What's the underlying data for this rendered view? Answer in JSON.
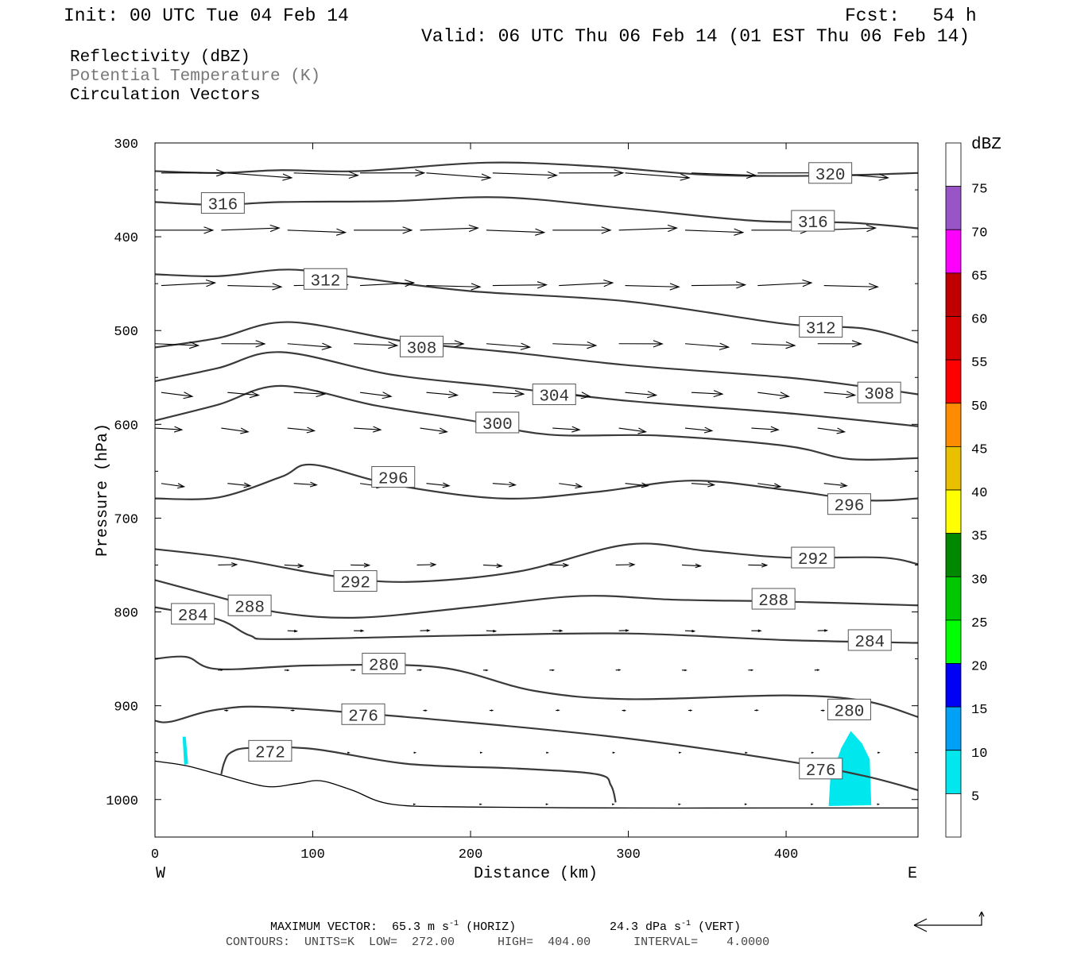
{
  "header": {
    "init": "Init: 00 UTC Tue 04 Feb 14",
    "fcst": "Fcst:   54 h",
    "valid": "Valid: 06 UTC Thu 06 Feb 14 (01 EST Thu 06 Feb 14)"
  },
  "legend": {
    "line1": "Reflectivity (dBZ)",
    "line2": "Potential Temperature (K)",
    "line3": "Circulation Vectors",
    "line2_color": "#777777"
  },
  "footer": {
    "max_vector_prefix": "MAXIMUM VECTOR:  65.3 m s",
    "horiz_exp": "-1",
    "horiz_suffix": " (HORIZ)",
    "vert_prefix": "24.3 dPa s",
    "vert_exp": "-1",
    "vert_suffix": " (VERT)",
    "contours": "CONTOURS:  UNITS=K  LOW=  272.00      HIGH=  404.00      INTERVAL=    4.0000"
  },
  "chart_data": {
    "type": "cross-section",
    "xlabel": "Distance (km)",
    "ylabel": "Pressure (hPa)",
    "xlim": [
      0,
      483.6
    ],
    "ylim": [
      300,
      1040
    ],
    "x_ticks": [
      "0",
      "100",
      "200",
      "300",
      "400"
    ],
    "y_ticks": [
      "300",
      "400",
      "500",
      "600",
      "700",
      "800",
      "900",
      "1000"
    ],
    "west_label": "W",
    "east_label": "E",
    "colorbar": {
      "title": "dBZ",
      "labels": [
        "5",
        "10",
        "15",
        "20",
        "25",
        "30",
        "35",
        "40",
        "45",
        "50",
        "55",
        "60",
        "65",
        "70",
        "75"
      ],
      "colors": [
        "#ffffff",
        "#00e8ee",
        "#00a0f6",
        "#0000f6",
        "#00ff00",
        "#00c800",
        "#008800",
        "#ffff00",
        "#e8c000",
        "#ff8c00",
        "#ff0000",
        "#d60000",
        "#c00000",
        "#ff00ff",
        "#9955c8",
        "#ffffff"
      ]
    },
    "reflectivity_regions": [
      {
        "dbz": 5,
        "color": "#00e8ee",
        "points": [
          [
            17.5,
            933
          ],
          [
            19.5,
            933
          ],
          [
            21,
            962
          ],
          [
            18.5,
            963
          ]
        ]
      },
      {
        "dbz": 5,
        "color": "#00e8ee",
        "points": [
          [
            427,
            1007
          ],
          [
            428,
            978
          ],
          [
            435,
            945
          ],
          [
            441,
            927
          ],
          [
            448,
            940
          ],
          [
            453,
            957
          ],
          [
            454,
            1006
          ]
        ]
      }
    ],
    "theta_contours": [
      {
        "value": 320,
        "points": [
          [
            0,
            330
          ],
          [
            40,
            332
          ],
          [
            80,
            329
          ],
          [
            130,
            330
          ],
          [
            210,
            321
          ],
          [
            280,
            325
          ],
          [
            350,
            334
          ],
          [
            420,
            335
          ],
          [
            483.6,
            332
          ]
        ],
        "labels": [
          [
            428,
            332
          ]
        ]
      },
      {
        "value": 316,
        "points": [
          [
            0,
            363
          ],
          [
            40,
            366
          ],
          [
            80,
            363
          ],
          [
            150,
            362
          ],
          [
            220,
            358
          ],
          [
            300,
            370
          ],
          [
            380,
            383
          ],
          [
            440,
            385
          ],
          [
            483.6,
            391
          ]
        ],
        "labels": [
          [
            43,
            364
          ],
          [
            417,
            383
          ]
        ]
      },
      {
        "value": 312,
        "points": [
          [
            0,
            440
          ],
          [
            40,
            442
          ],
          [
            85,
            435
          ],
          [
            130,
            444
          ],
          [
            200,
            458
          ],
          [
            300,
            469
          ],
          [
            400,
            493
          ],
          [
            450,
            498
          ],
          [
            483.6,
            513
          ]
        ],
        "labels": [
          [
            108,
            445
          ],
          [
            422,
            496
          ]
        ]
      },
      {
        "value": 308,
        "points": [
          [
            0,
            518
          ],
          [
            40,
            508
          ],
          [
            85,
            491
          ],
          [
            160,
            512
          ],
          [
            230,
            524
          ],
          [
            300,
            537
          ],
          [
            400,
            550
          ],
          [
            450,
            560
          ],
          [
            483.6,
            568
          ]
        ],
        "labels": [
          [
            169,
            517
          ],
          [
            459,
            566
          ]
        ]
      },
      {
        "value": 304,
        "points": [
          [
            0,
            554
          ],
          [
            40,
            540
          ],
          [
            80,
            523
          ],
          [
            150,
            547
          ],
          [
            220,
            560
          ],
          [
            300,
            575
          ],
          [
            400,
            588
          ],
          [
            483.6,
            602
          ]
        ],
        "labels": [
          [
            253,
            568
          ]
        ]
      },
      {
        "value": 300,
        "points": [
          [
            0,
            596
          ],
          [
            40,
            579
          ],
          [
            80,
            559
          ],
          [
            140,
            580
          ],
          [
            200,
            596
          ],
          [
            250,
            611
          ],
          [
            320,
            612
          ],
          [
            400,
            623
          ],
          [
            440,
            637
          ],
          [
            483.6,
            636
          ]
        ],
        "labels": [
          [
            217,
            598
          ]
        ]
      },
      {
        "value": 296,
        "points": [
          [
            0,
            679
          ],
          [
            40,
            678
          ],
          [
            80,
            656
          ],
          [
            100,
            643
          ],
          [
            150,
            664
          ],
          [
            220,
            679
          ],
          [
            280,
            672
          ],
          [
            340,
            660
          ],
          [
            400,
            670
          ],
          [
            450,
            681
          ],
          [
            483.6,
            679
          ]
        ],
        "labels": [
          [
            151,
            656
          ],
          [
            440,
            685
          ]
        ]
      },
      {
        "value": 292,
        "points": [
          [
            0,
            733
          ],
          [
            50,
            743
          ],
          [
            110,
            761
          ],
          [
            160,
            768
          ],
          [
            230,
            757
          ],
          [
            300,
            728
          ],
          [
            350,
            735
          ],
          [
            400,
            742
          ],
          [
            460,
            742
          ],
          [
            483.6,
            749
          ]
        ],
        "labels": [
          [
            127,
            767
          ],
          [
            417,
            742
          ]
        ]
      },
      {
        "value": 288,
        "points": [
          [
            0,
            766
          ],
          [
            40,
            784
          ],
          [
            80,
            801
          ],
          [
            130,
            806
          ],
          [
            200,
            795
          ],
          [
            270,
            783
          ],
          [
            330,
            787
          ],
          [
            400,
            789
          ],
          [
            483.6,
            793
          ]
        ],
        "labels": [
          [
            60,
            793
          ],
          [
            392,
            786
          ]
        ]
      },
      {
        "value": 284,
        "points": [
          [
            0,
            795
          ],
          [
            40,
            808
          ],
          [
            60,
            825
          ],
          [
            80,
            829
          ],
          [
            200,
            825
          ],
          [
            300,
            823
          ],
          [
            400,
            830
          ],
          [
            483.6,
            833
          ]
        ],
        "labels": [
          [
            24,
            802
          ],
          [
            453,
            830
          ]
        ]
      },
      {
        "value": 280,
        "points": [
          [
            0,
            850
          ],
          [
            20,
            848
          ],
          [
            40,
            861
          ],
          [
            100,
            857
          ],
          [
            180,
            859
          ],
          [
            240,
            884
          ],
          [
            300,
            893
          ],
          [
            400,
            889
          ],
          [
            450,
            895
          ],
          [
            483.6,
            912
          ]
        ],
        "labels": [
          [
            145,
            855
          ],
          [
            440,
            904
          ]
        ]
      },
      {
        "value": 276,
        "points": [
          [
            0,
            916
          ],
          [
            10,
            917
          ],
          [
            40,
            904
          ],
          [
            80,
            902
          ],
          [
            200,
            918
          ],
          [
            300,
            935
          ],
          [
            400,
            959
          ],
          [
            450,
            975
          ],
          [
            483.6,
            990
          ]
        ],
        "labels": [
          [
            132,
            909
          ],
          [
            422,
            967
          ]
        ]
      },
      {
        "value": 272,
        "points": [
          [
            42,
            973
          ],
          [
            44,
            960
          ],
          [
            48,
            950
          ],
          [
            60,
            945
          ],
          [
            100,
            946
          ],
          [
            160,
            962
          ],
          [
            230,
            967
          ],
          [
            280,
            973
          ],
          [
            289,
            985
          ],
          [
            292,
            1003
          ]
        ],
        "labels": [
          [
            73,
            948
          ]
        ]
      }
    ],
    "terrain": [
      [
        0,
        959
      ],
      [
        20,
        964
      ],
      [
        40,
        973
      ],
      [
        70,
        986
      ],
      [
        90,
        983
      ],
      [
        105,
        980
      ],
      [
        125,
        990
      ],
      [
        150,
        1005
      ],
      [
        200,
        1008
      ],
      [
        300,
        1009
      ],
      [
        400,
        1009
      ],
      [
        483.6,
        1009
      ]
    ],
    "vector_rows": [
      {
        "p": 332,
        "u": 62,
        "w": -1,
        "x_start": 0
      },
      {
        "p": 393,
        "u": 56,
        "w": 0,
        "x_start": 0
      },
      {
        "p": 452,
        "u": 52,
        "w": 0,
        "x_start": 0
      },
      {
        "p": 514,
        "u": 42,
        "w": -1,
        "x_start": 0
      },
      {
        "p": 566,
        "u": 30,
        "w": -1,
        "x_start": 0
      },
      {
        "p": 604,
        "u": 26,
        "w": -1,
        "x_start": 0
      },
      {
        "p": 663,
        "u": 22,
        "w": -1,
        "x_start": 0
      },
      {
        "p": 750,
        "u": 18,
        "w": 0,
        "x_start": 40
      },
      {
        "p": 820,
        "u": 9,
        "w": 0,
        "x_start": 80
      },
      {
        "p": 862,
        "u": 4,
        "w": 0,
        "x_start": 40
      },
      {
        "p": 905,
        "u": 3,
        "w": 0,
        "x_start": 40
      },
      {
        "p": 950,
        "u": 1.5,
        "w": 0,
        "x_start": 80
      },
      {
        "p": 1005,
        "u": 1,
        "w": 0,
        "x_start": 160
      }
    ]
  }
}
